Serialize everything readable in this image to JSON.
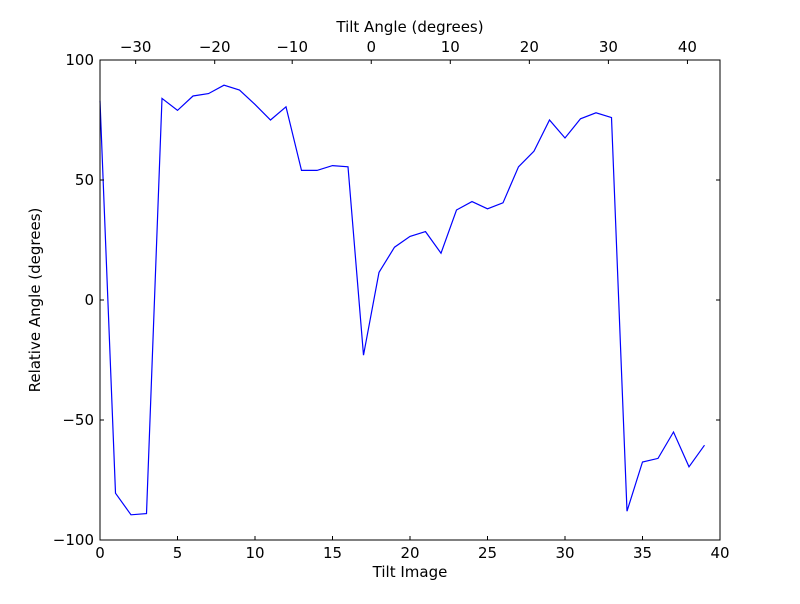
{
  "chart_data": {
    "type": "line",
    "xlabel": "Tilt Image",
    "ylabel": "Relative Angle (degrees)",
    "top_xlabel": "Tilt Angle (degrees)",
    "xlim": [
      0,
      40
    ],
    "ylim": [
      -100,
      100
    ],
    "x_ticks": [
      0,
      5,
      10,
      15,
      20,
      25,
      30,
      35,
      40
    ],
    "y_ticks": [
      -100,
      -50,
      0,
      50,
      100
    ],
    "top_ticks": [
      {
        "label": "−30",
        "pos": 2.3
      },
      {
        "label": "−20",
        "pos": 7.4
      },
      {
        "label": "−10",
        "pos": 12.4
      },
      {
        "label": "0",
        "pos": 17.5
      },
      {
        "label": "10",
        "pos": 22.6
      },
      {
        "label": "20",
        "pos": 27.7
      },
      {
        "label": "30",
        "pos": 32.8
      },
      {
        "label": "40",
        "pos": 37.9
      }
    ],
    "grid": false,
    "series": [
      {
        "color": "#0000ff",
        "x": [
          0,
          1,
          2,
          3,
          4,
          5,
          6,
          7,
          8,
          9,
          10,
          11,
          12,
          13,
          14,
          15,
          16,
          17,
          18,
          19,
          20,
          21,
          22,
          23,
          24,
          25,
          26,
          27,
          28,
          29,
          30,
          31,
          32,
          33,
          34,
          35,
          36,
          37,
          38,
          39
        ],
        "y": [
          83,
          -80.5,
          -89.5,
          -89,
          84,
          79,
          85,
          86,
          89.5,
          87.5,
          81.5,
          75,
          80.5,
          54,
          54,
          56,
          55.5,
          -23,
          11.5,
          22,
          26.5,
          28.5,
          19.5,
          37.5,
          41,
          38,
          40.5,
          55.5,
          62,
          75,
          67.5,
          75.5,
          78,
          76,
          -88,
          -67.5,
          -66,
          -55,
          -69.5,
          -60.5
        ]
      }
    ]
  }
}
